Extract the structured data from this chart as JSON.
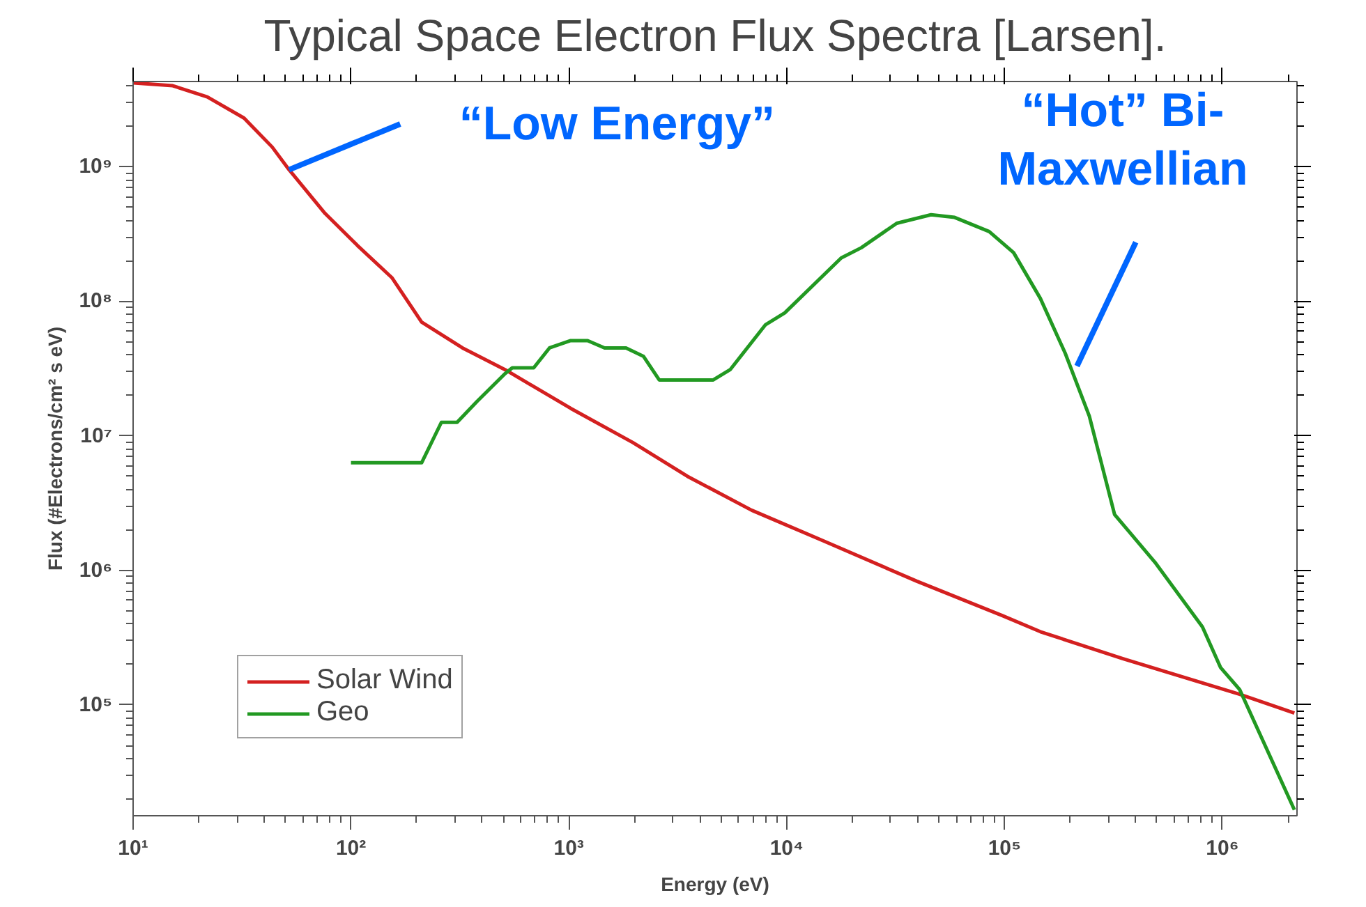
{
  "chart_data": {
    "type": "line",
    "title": "Typical Space Electron Flux Spectra [Larsen].",
    "xlabel": "Energy (eV)",
    "ylabel": "Flux (#Electrons/cm² s eV)",
    "log": "xy",
    "grid": false,
    "legend": "bottom left",
    "line_style": "solid",
    "marker": "none",
    "xlim": [
      10,
      2200000
    ],
    "ylim": [
      15000,
      4300000000
    ],
    "xticks": [
      {
        "value": 10,
        "label": "10¹"
      },
      {
        "value": 100,
        "label": "10²"
      },
      {
        "value": 1000,
        "label": "10³"
      },
      {
        "value": 10000,
        "label": "10⁴"
      },
      {
        "value": 100000,
        "label": "10⁵"
      },
      {
        "value": 1000000,
        "label": "10⁶"
      }
    ],
    "yticks": [
      {
        "value": 100000,
        "label": "10⁵"
      },
      {
        "value": 1000000,
        "label": "10⁶"
      },
      {
        "value": 10000000,
        "label": "10⁷"
      },
      {
        "value": 100000000,
        "label": "10⁸"
      },
      {
        "value": 1000000000,
        "label": "10⁹"
      }
    ],
    "annotations": [
      {
        "text": "“Low Energy”",
        "x": 52,
        "y": 950000000
      },
      {
        "text": "“Hot” Bi-\nMaxwellian",
        "x": 215000,
        "y": 33000000
      }
    ],
    "series": [
      {
        "name": "Solar Wind",
        "color": "#d42020",
        "x": [
          10,
          15.2,
          21.9,
          32.3,
          43.5,
          52,
          76,
          107,
          154,
          211,
          325,
          510,
          1020,
          1970,
          3500,
          6900,
          14700,
          39600,
          98000,
          146000,
          350000,
          1200000,
          2140000
        ],
        "values": [
          4200000000,
          4000000000,
          3300000000,
          2300000000,
          1400000000,
          950000000,
          450000000,
          260000000,
          150000000,
          70000000,
          45000000,
          31000000,
          16000000,
          8900000,
          5000000,
          2800000,
          1660000,
          830000,
          460000,
          350000,
          220000,
          120000,
          87000
        ]
      },
      {
        "name": "Geo",
        "color": "#229922",
        "x": [
          100,
          211,
          260,
          307,
          379,
          510,
          550,
          690,
          815,
          1020,
          1220,
          1460,
          1830,
          2200,
          2600,
          4600,
          5500,
          8000,
          9800,
          17800,
          22000,
          32000,
          46000,
          59000,
          85000,
          110000,
          146000,
          190000,
          245000,
          320000,
          490000,
          810000,
          980000,
          1200000,
          2140000
        ],
        "values": [
          6300000,
          6300000,
          12600000,
          12600000,
          18000000,
          29000000,
          32000000,
          32000000,
          45000000,
          51000000,
          51000000,
          45000000,
          45000000,
          39000000,
          26000000,
          26000000,
          31000000,
          67000000,
          82000000,
          210000000,
          250000000,
          380000000,
          440000000,
          420000000,
          330000000,
          230000000,
          105000000,
          41000000,
          14000000,
          2600000,
          1150000,
          380000,
          190000,
          130000,
          16600
        ]
      }
    ]
  }
}
